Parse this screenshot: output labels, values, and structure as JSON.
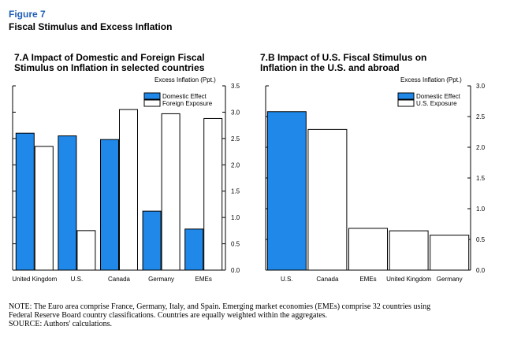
{
  "figure": {
    "label": "Figure 7",
    "title": "Fiscal Stimulus and Excess Inflation"
  },
  "chart_data": [
    {
      "type": "bar",
      "title_line1": "7.A Impact of Domestic and Foreign Fiscal",
      "title_line2": "Stimulus on Inflation in selected countries",
      "ylabel": "Excess Inflation (Ppt.)",
      "ylim": [
        0,
        3.5
      ],
      "yticks": [
        "0.0",
        "0.5",
        "1.0",
        "1.5",
        "2.0",
        "2.5",
        "3.0",
        "3.5"
      ],
      "categories": [
        "United Kingdom",
        "U.S.",
        "Canada",
        "Germany",
        "EMEs"
      ],
      "legend_position": "top-right",
      "series": [
        {
          "name": "Domestic Effect",
          "color": "#1f88e8",
          "values": [
            2.6,
            2.55,
            2.48,
            1.12,
            0.78
          ]
        },
        {
          "name": "Foreign Exposure",
          "color": "#ffffff",
          "values": [
            2.35,
            0.75,
            3.05,
            2.97,
            2.88
          ]
        }
      ]
    },
    {
      "type": "bar",
      "title_line1": "7.B Impact of U.S. Fiscal Stimulus on",
      "title_line2": "Inflation in the U.S. and abroad",
      "ylabel": "Excess Inflation (Ppt.)",
      "ylim": [
        0,
        3.0
      ],
      "yticks": [
        "0.0",
        "0.5",
        "1.0",
        "1.5",
        "2.0",
        "2.5",
        "3.0"
      ],
      "categories": [
        "U.S.",
        "Canada",
        "EMEs",
        "United Kingdom",
        "Germany"
      ],
      "legend_position": "top-right",
      "series": [
        {
          "name": "Domestic Effect",
          "color": "#1f88e8",
          "values": [
            2.58,
            null,
            null,
            null,
            null
          ]
        },
        {
          "name": "U.S. Exposure",
          "color": "#ffffff",
          "values": [
            null,
            2.29,
            0.68,
            0.64,
            0.57
          ]
        }
      ]
    }
  ],
  "notes": {
    "line1": "NOTE: The Euro area comprise France, Germany, Italy, and Spain. Emerging market economies (EMEs) comprise 32 countries using",
    "line2": "Federal Reserve Board country classifications. Countries are equally weighted within the aggregates.",
    "source": "SOURCE: Authors' calculations."
  }
}
